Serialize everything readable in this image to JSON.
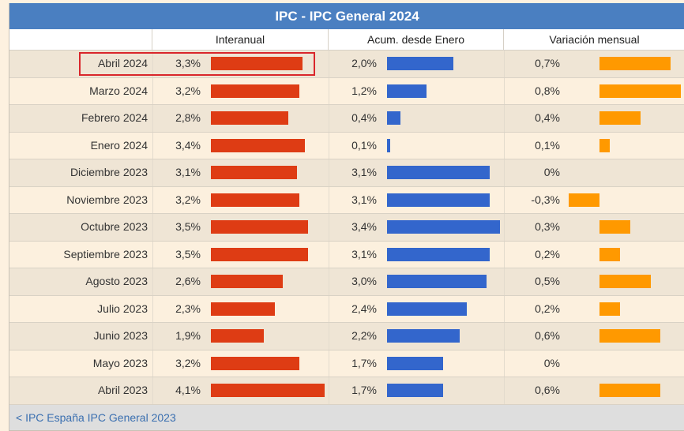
{
  "table": {
    "title": "IPC - IPC General 2024",
    "headers": [
      "",
      "Interanual",
      "Acum. desde Enero",
      "Variación mensual"
    ],
    "rows": [
      {
        "label": "Abril 2024",
        "interanual": "3,3%",
        "acum": "2,0%",
        "mensual": "0,7%",
        "i": 3.3,
        "a": 2.0,
        "m": 0.7
      },
      {
        "label": "Marzo 2024",
        "interanual": "3,2%",
        "acum": "1,2%",
        "mensual": "0,8%",
        "i": 3.2,
        "a": 1.2,
        "m": 0.8
      },
      {
        "label": "Febrero 2024",
        "interanual": "2,8%",
        "acum": "0,4%",
        "mensual": "0,4%",
        "i": 2.8,
        "a": 0.4,
        "m": 0.4
      },
      {
        "label": "Enero 2024",
        "interanual": "3,4%",
        "acum": "0,1%",
        "mensual": "0,1%",
        "i": 3.4,
        "a": 0.1,
        "m": 0.1
      },
      {
        "label": "Diciembre 2023",
        "interanual": "3,1%",
        "acum": "3,1%",
        "mensual": "0%",
        "i": 3.1,
        "a": 3.1,
        "m": 0
      },
      {
        "label": "Noviembre 2023",
        "interanual": "3,2%",
        "acum": "3,1%",
        "mensual": "-0,3%",
        "i": 3.2,
        "a": 3.1,
        "m": -0.3
      },
      {
        "label": "Octubre 2023",
        "interanual": "3,5%",
        "acum": "3,4%",
        "mensual": "0,3%",
        "i": 3.5,
        "a": 3.4,
        "m": 0.3
      },
      {
        "label": "Septiembre 2023",
        "interanual": "3,5%",
        "acum": "3,1%",
        "mensual": "0,2%",
        "i": 3.5,
        "a": 3.1,
        "m": 0.2
      },
      {
        "label": "Agosto 2023",
        "interanual": "2,6%",
        "acum": "3,0%",
        "mensual": "0,5%",
        "i": 2.6,
        "a": 3.0,
        "m": 0.5
      },
      {
        "label": "Julio 2023",
        "interanual": "2,3%",
        "acum": "2,4%",
        "mensual": "0,2%",
        "i": 2.3,
        "a": 2.4,
        "m": 0.2
      },
      {
        "label": "Junio 2023",
        "interanual": "1,9%",
        "acum": "2,2%",
        "mensual": "0,6%",
        "i": 1.9,
        "a": 2.2,
        "m": 0.6
      },
      {
        "label": "Mayo 2023",
        "interanual": "3,2%",
        "acum": "1,7%",
        "mensual": "0%",
        "i": 3.2,
        "a": 1.7,
        "m": 0
      },
      {
        "label": "Abril 2023",
        "interanual": "4,1%",
        "acum": "1,7%",
        "mensual": "0,6%",
        "i": 4.1,
        "a": 1.7,
        "m": 0.6
      }
    ]
  },
  "footer": {
    "link_text": "< IPC España IPC General 2023"
  },
  "colors": {
    "interanual": "#de3c14",
    "acum": "#3366cc",
    "mensual": "#ff9900",
    "header": "#4a7fc1",
    "highlight": "#d9262b"
  }
}
